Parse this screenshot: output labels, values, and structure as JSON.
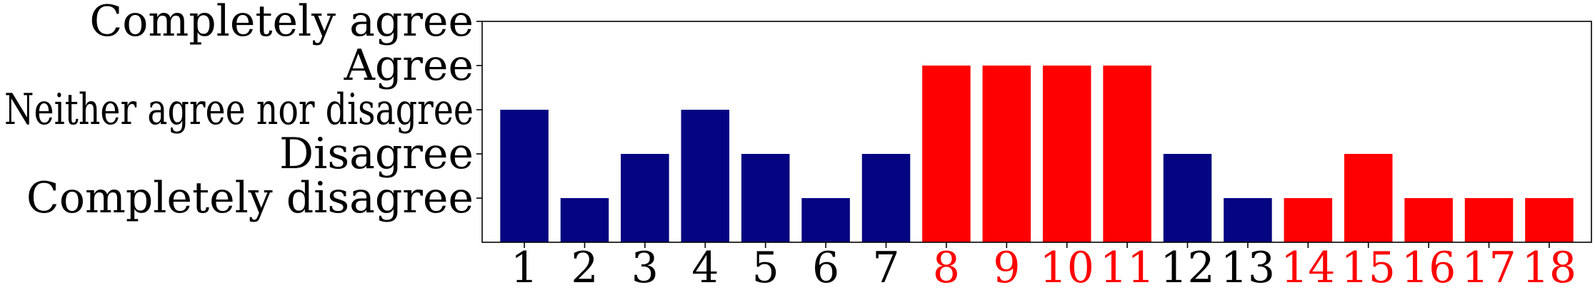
{
  "chart_data": {
    "type": "bar",
    "categories": [
      "1",
      "2",
      "3",
      "4",
      "5",
      "6",
      "7",
      "8",
      "9",
      "10",
      "11",
      "12",
      "13",
      "14",
      "15",
      "16",
      "17",
      "18"
    ],
    "values": [
      3,
      1,
      2,
      3,
      2,
      1,
      2,
      4,
      4,
      4,
      4,
      2,
      1,
      1,
      2,
      1,
      1,
      1
    ],
    "highlight": [
      false,
      false,
      false,
      false,
      false,
      false,
      false,
      true,
      true,
      true,
      true,
      false,
      false,
      true,
      true,
      true,
      true,
      true
    ],
    "y_levels": [
      {
        "value": 1,
        "label": "Completely disagree"
      },
      {
        "value": 2,
        "label": "Disagree"
      },
      {
        "value": 3,
        "label": "Neither agree nor disagree"
      },
      {
        "value": 4,
        "label": "Agree"
      },
      {
        "value": 5,
        "label": "Completely agree"
      }
    ],
    "ylim": [
      0,
      5
    ],
    "grid": false,
    "title": "",
    "xlabel": "",
    "ylabel": "",
    "colors": {
      "default_bar": "#050581",
      "highlight_bar": "#ff0000",
      "default_tick": "#000000",
      "highlight_tick": "#ff0000",
      "axes": "#000000"
    }
  }
}
